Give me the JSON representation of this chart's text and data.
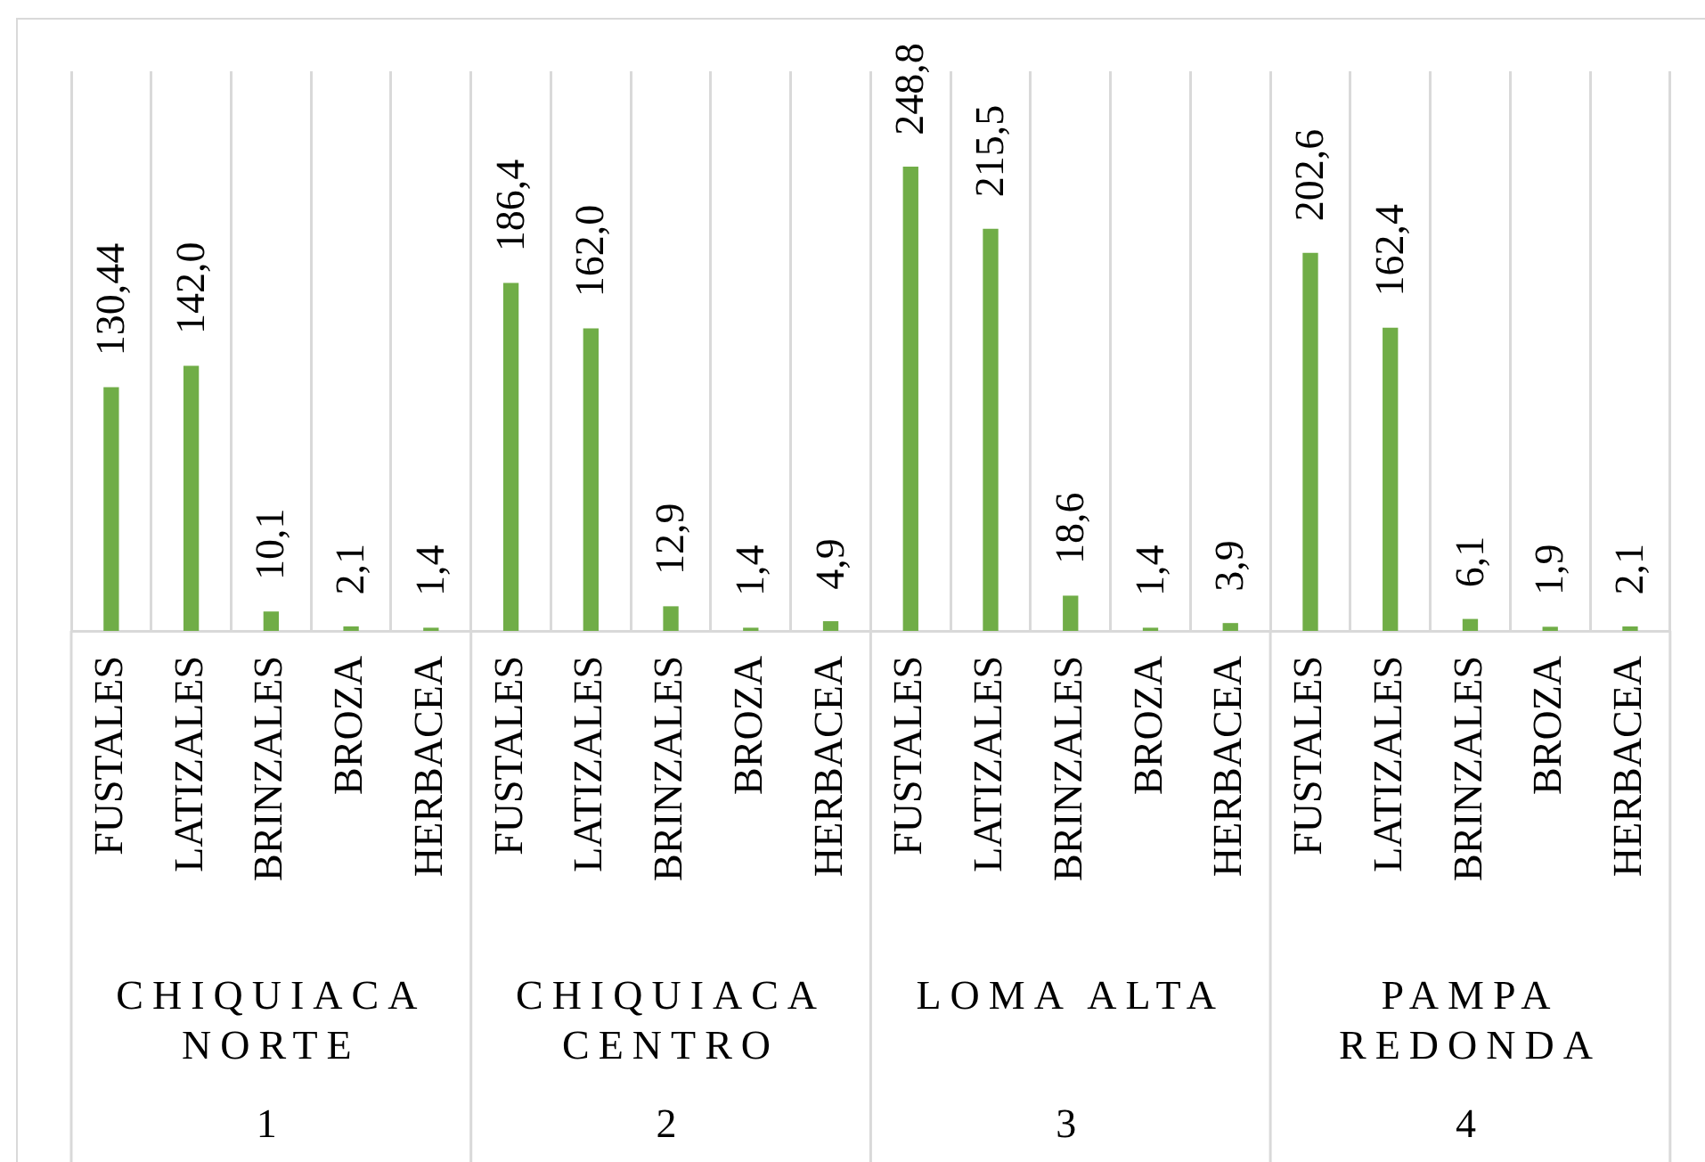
{
  "chart_data": {
    "type": "bar",
    "categories": [
      "FUSTALES",
      "LATIZALES",
      "BRINZALES",
      "BROZA",
      "HERBACEA",
      "FUSTALES",
      "LATIZALES",
      "BRINZALES",
      "BROZA",
      "HERBACEA",
      "FUSTALES",
      "LATIZALES",
      "BRINZALES",
      "BROZA",
      "HERBACEA",
      "FUSTALES",
      "LATIZALES",
      "BRINZALES",
      "BROZA",
      "HERBACEA"
    ],
    "values": [
      130.44,
      142.0,
      10.1,
      2.1,
      1.4,
      186.4,
      162.0,
      12.9,
      1.4,
      4.9,
      248.8,
      215.5,
      18.6,
      1.4,
      3.9,
      202.6,
      162.4,
      6.1,
      1.9,
      2.1
    ],
    "value_labels": [
      "130,44",
      "142,0",
      "10,1",
      "2,1",
      "1,4",
      "186,4",
      "162,0",
      "12,9",
      "1,4",
      "4,9",
      "248,8",
      "215,5",
      "18,6",
      "1,4",
      "3,9",
      "202,6",
      "162,4",
      "6,1",
      "1,9",
      "2,1"
    ],
    "color": "#70ad47",
    "grid": "x",
    "annotations": [
      "CHIQUIACA NORTE",
      "CHIQUIACA CENTRO",
      "LOMA ALTA",
      "PAMPA REDONDA",
      "1",
      "2",
      "3",
      "4"
    ]
  }
}
